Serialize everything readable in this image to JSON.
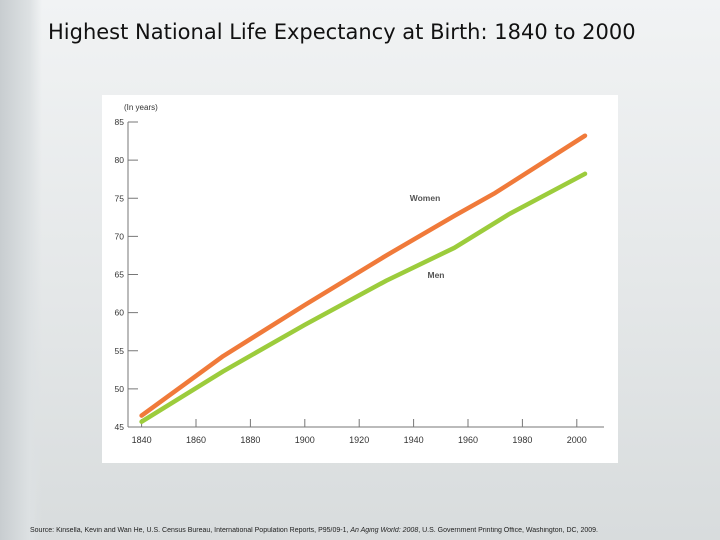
{
  "slide": {
    "title": "Highest National Life Expectancy at Birth: 1840 to 2000",
    "source_prefix": "Source: Kinsella, Kevin and Wan He, U.S. Census Bureau, International Population Reports, P95/09-1, ",
    "source_italic": "An Aging World: 2008",
    "source_suffix": ", U.S. Government Printing Office, Washington, DC, 2009."
  },
  "chart_data": {
    "type": "line",
    "title": "Highest National Life Expectancy at Birth: 1840 to 2000",
    "ylabel": "(In years)",
    "xlabel": "",
    "xlim": [
      1835,
      2010
    ],
    "ylim": [
      45,
      85
    ],
    "xticks": [
      1840,
      1860,
      1880,
      1900,
      1920,
      1940,
      1960,
      1980,
      2000
    ],
    "yticks": [
      45,
      50,
      55,
      60,
      65,
      70,
      75,
      80,
      85
    ],
    "grid": false,
    "series": [
      {
        "name": "Women",
        "color": "#f07a3a",
        "x": [
          1840,
          1870,
          1900,
          1930,
          1955,
          1970,
          2003
        ],
        "y": [
          46.5,
          54.3,
          61.0,
          67.5,
          72.7,
          75.7,
          83.2
        ]
      },
      {
        "name": "Men",
        "color": "#9ccc3c",
        "x": [
          1840,
          1870,
          1900,
          1930,
          1955,
          1975,
          2003
        ],
        "y": [
          45.7,
          52.3,
          58.4,
          64.2,
          68.5,
          72.9,
          78.2
        ]
      }
    ],
    "annotations": [
      {
        "text": "Women",
        "series": "Women"
      },
      {
        "text": "Men",
        "series": "Men"
      }
    ]
  }
}
